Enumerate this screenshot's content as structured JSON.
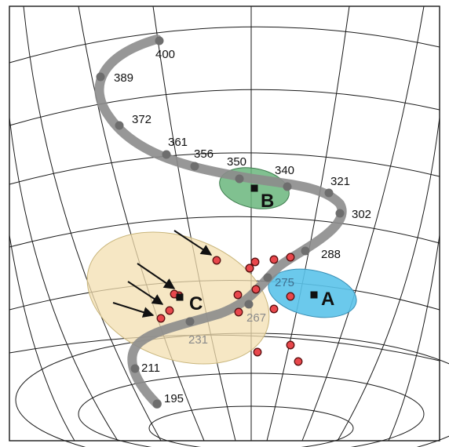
{
  "figure": {
    "colors": {
      "track": "#8c8c8c",
      "track_node": "#6e6e6e",
      "grid": "#1a1a1a",
      "zone_c": "#f3dfb0",
      "zone_a": "#5bc3ea",
      "zone_b": "#6ab67c",
      "dot_fill": "#e8474c",
      "dot_stroke": "#5a1010",
      "site_marker": "#111111",
      "arrow": "#111111"
    },
    "sites": [
      {
        "label": "A"
      },
      {
        "label": "B"
      },
      {
        "label": "C"
      }
    ],
    "track_ages": [
      "400",
      "389",
      "372",
      "361",
      "356",
      "350",
      "340",
      "321",
      "302",
      "288",
      "275",
      "267",
      "231",
      "211",
      "195"
    ],
    "sample_points_count": 18,
    "arrow_count": 4
  }
}
